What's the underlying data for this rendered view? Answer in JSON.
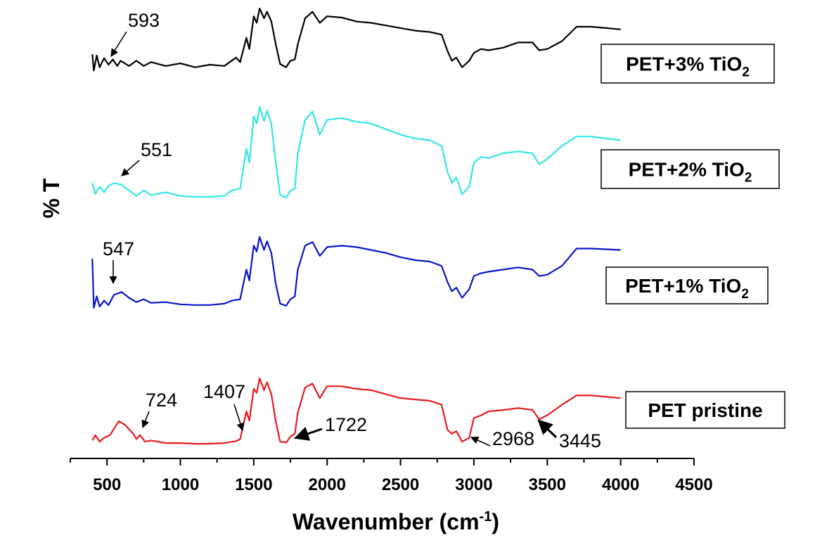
{
  "chart_data": {
    "type": "line",
    "xlabel": "Wavenumber (cm",
    "xlabel_sup": "-1",
    "xlabel_suffix": ")",
    "ylabel": "% T",
    "xlim": [
      250,
      4500
    ],
    "x_ticks": [
      500,
      1000,
      1500,
      2000,
      2500,
      3000,
      3500,
      4000,
      4500
    ],
    "y_axis_ticks_shown": false,
    "grid": false,
    "series": [
      {
        "name": "PET+3% TiO2",
        "label_main": "PET+3% TiO",
        "label_sub": "2",
        "color": "#000000",
        "points": [
          [
            400,
            0.3
          ],
          [
            410,
            0.05
          ],
          [
            430,
            0.28
          ],
          [
            450,
            0.1
          ],
          [
            480,
            0.24
          ],
          [
            510,
            0.14
          ],
          [
            540,
            0.22
          ],
          [
            570,
            0.12
          ],
          [
            593,
            0.2
          ],
          [
            650,
            0.12
          ],
          [
            700,
            0.2
          ],
          [
            750,
            0.12
          ],
          [
            800,
            0.18
          ],
          [
            900,
            0.12
          ],
          [
            1000,
            0.16
          ],
          [
            1100,
            0.1
          ],
          [
            1200,
            0.14
          ],
          [
            1300,
            0.12
          ],
          [
            1380,
            0.25
          ],
          [
            1407,
            0.18
          ],
          [
            1450,
            0.55
          ],
          [
            1470,
            0.38
          ],
          [
            1500,
            0.88
          ],
          [
            1520,
            0.78
          ],
          [
            1540,
            1.0
          ],
          [
            1570,
            0.85
          ],
          [
            1590,
            0.95
          ],
          [
            1620,
            0.8
          ],
          [
            1650,
            0.45
          ],
          [
            1680,
            0.15
          ],
          [
            1720,
            0.1
          ],
          [
            1750,
            0.2
          ],
          [
            1780,
            0.22
          ],
          [
            1800,
            0.45
          ],
          [
            1850,
            0.85
          ],
          [
            1900,
            0.95
          ],
          [
            1950,
            0.78
          ],
          [
            2000,
            0.88
          ],
          [
            2100,
            0.86
          ],
          [
            2200,
            0.8
          ],
          [
            2300,
            0.78
          ],
          [
            2400,
            0.74
          ],
          [
            2500,
            0.7
          ],
          [
            2600,
            0.66
          ],
          [
            2700,
            0.64
          ],
          [
            2780,
            0.6
          ],
          [
            2820,
            0.35
          ],
          [
            2850,
            0.2
          ],
          [
            2880,
            0.25
          ],
          [
            2920,
            0.1
          ],
          [
            2968,
            0.2
          ],
          [
            3000,
            0.32
          ],
          [
            3050,
            0.38
          ],
          [
            3100,
            0.36
          ],
          [
            3200,
            0.4
          ],
          [
            3300,
            0.48
          ],
          [
            3400,
            0.48
          ],
          [
            3445,
            0.36
          ],
          [
            3500,
            0.38
          ],
          [
            3600,
            0.5
          ],
          [
            3700,
            0.72
          ],
          [
            3800,
            0.72
          ],
          [
            3900,
            0.7
          ],
          [
            4000,
            0.68
          ]
        ]
      },
      {
        "name": "PET+2% TiO2",
        "label_main": "PET+2% TiO",
        "label_sub": "2",
        "color": "#33e5e5",
        "points": [
          [
            400,
            0.18
          ],
          [
            420,
            0.06
          ],
          [
            450,
            0.14
          ],
          [
            480,
            0.08
          ],
          [
            510,
            0.15
          ],
          [
            551,
            0.18
          ],
          [
            600,
            0.16
          ],
          [
            650,
            0.1
          ],
          [
            700,
            0.04
          ],
          [
            750,
            0.1
          ],
          [
            800,
            0.05
          ],
          [
            900,
            0.08
          ],
          [
            1000,
            0.04
          ],
          [
            1100,
            0.03
          ],
          [
            1200,
            0.03
          ],
          [
            1300,
            0.04
          ],
          [
            1350,
            0.1
          ],
          [
            1407,
            0.12
          ],
          [
            1450,
            0.55
          ],
          [
            1470,
            0.4
          ],
          [
            1500,
            0.9
          ],
          [
            1520,
            0.82
          ],
          [
            1540,
            1.0
          ],
          [
            1570,
            0.85
          ],
          [
            1590,
            0.96
          ],
          [
            1620,
            0.82
          ],
          [
            1650,
            0.4
          ],
          [
            1680,
            0.05
          ],
          [
            1720,
            0.02
          ],
          [
            1750,
            0.1
          ],
          [
            1780,
            0.12
          ],
          [
            1800,
            0.5
          ],
          [
            1850,
            0.86
          ],
          [
            1900,
            0.95
          ],
          [
            1950,
            0.7
          ],
          [
            2000,
            0.86
          ],
          [
            2100,
            0.88
          ],
          [
            2200,
            0.84
          ],
          [
            2300,
            0.82
          ],
          [
            2400,
            0.76
          ],
          [
            2500,
            0.7
          ],
          [
            2600,
            0.66
          ],
          [
            2700,
            0.64
          ],
          [
            2780,
            0.58
          ],
          [
            2820,
            0.3
          ],
          [
            2850,
            0.18
          ],
          [
            2880,
            0.24
          ],
          [
            2920,
            0.06
          ],
          [
            2968,
            0.14
          ],
          [
            3000,
            0.4
          ],
          [
            3050,
            0.46
          ],
          [
            3100,
            0.45
          ],
          [
            3200,
            0.5
          ],
          [
            3300,
            0.52
          ],
          [
            3400,
            0.5
          ],
          [
            3445,
            0.38
          ],
          [
            3500,
            0.44
          ],
          [
            3600,
            0.58
          ],
          [
            3700,
            0.68
          ],
          [
            3800,
            0.68
          ],
          [
            3900,
            0.66
          ],
          [
            4000,
            0.64
          ]
        ]
      },
      {
        "name": "PET+1% TiO2",
        "label_main": "PET+1% TiO",
        "label_sub": "2",
        "color": "#0a14c8",
        "points": [
          [
            400,
            0.7
          ],
          [
            410,
            0.02
          ],
          [
            430,
            0.18
          ],
          [
            450,
            0.04
          ],
          [
            480,
            0.12
          ],
          [
            510,
            0.06
          ],
          [
            547,
            0.2
          ],
          [
            600,
            0.24
          ],
          [
            650,
            0.16
          ],
          [
            700,
            0.1
          ],
          [
            750,
            0.14
          ],
          [
            800,
            0.09
          ],
          [
            900,
            0.1
          ],
          [
            1000,
            0.07
          ],
          [
            1100,
            0.06
          ],
          [
            1200,
            0.06
          ],
          [
            1300,
            0.08
          ],
          [
            1350,
            0.12
          ],
          [
            1407,
            0.14
          ],
          [
            1450,
            0.55
          ],
          [
            1470,
            0.4
          ],
          [
            1500,
            0.88
          ],
          [
            1520,
            0.8
          ],
          [
            1540,
            1.0
          ],
          [
            1570,
            0.82
          ],
          [
            1590,
            0.94
          ],
          [
            1620,
            0.78
          ],
          [
            1650,
            0.35
          ],
          [
            1680,
            0.08
          ],
          [
            1720,
            0.05
          ],
          [
            1750,
            0.14
          ],
          [
            1780,
            0.18
          ],
          [
            1800,
            0.55
          ],
          [
            1850,
            0.88
          ],
          [
            1900,
            0.93
          ],
          [
            1950,
            0.74
          ],
          [
            2000,
            0.86
          ],
          [
            2100,
            0.88
          ],
          [
            2200,
            0.86
          ],
          [
            2300,
            0.82
          ],
          [
            2400,
            0.78
          ],
          [
            2500,
            0.72
          ],
          [
            2600,
            0.68
          ],
          [
            2700,
            0.66
          ],
          [
            2780,
            0.6
          ],
          [
            2820,
            0.38
          ],
          [
            2850,
            0.25
          ],
          [
            2880,
            0.3
          ],
          [
            2920,
            0.16
          ],
          [
            2968,
            0.28
          ],
          [
            3000,
            0.46
          ],
          [
            3050,
            0.5
          ],
          [
            3100,
            0.52
          ],
          [
            3200,
            0.55
          ],
          [
            3300,
            0.58
          ],
          [
            3400,
            0.55
          ],
          [
            3445,
            0.46
          ],
          [
            3500,
            0.48
          ],
          [
            3600,
            0.6
          ],
          [
            3700,
            0.84
          ],
          [
            3800,
            0.84
          ],
          [
            3900,
            0.83
          ],
          [
            4000,
            0.82
          ]
        ]
      },
      {
        "name": "PET pristine",
        "label_main": "PET pristine",
        "label_sub": "",
        "color": "#e8191e",
        "points": [
          [
            400,
            0.06
          ],
          [
            420,
            0.14
          ],
          [
            450,
            0.04
          ],
          [
            480,
            0.1
          ],
          [
            520,
            0.14
          ],
          [
            580,
            0.35
          ],
          [
            620,
            0.3
          ],
          [
            680,
            0.16
          ],
          [
            700,
            0.08
          ],
          [
            724,
            0.14
          ],
          [
            760,
            0.04
          ],
          [
            800,
            0.06
          ],
          [
            900,
            0.02
          ],
          [
            1000,
            0.02
          ],
          [
            1100,
            0.01
          ],
          [
            1200,
            0.01
          ],
          [
            1300,
            0.02
          ],
          [
            1380,
            0.05
          ],
          [
            1407,
            0.08
          ],
          [
            1450,
            0.5
          ],
          [
            1470,
            0.36
          ],
          [
            1500,
            0.84
          ],
          [
            1520,
            0.78
          ],
          [
            1540,
            1.0
          ],
          [
            1570,
            0.82
          ],
          [
            1590,
            0.94
          ],
          [
            1620,
            0.76
          ],
          [
            1650,
            0.35
          ],
          [
            1680,
            0.04
          ],
          [
            1722,
            0.03
          ],
          [
            1750,
            0.12
          ],
          [
            1780,
            0.16
          ],
          [
            1800,
            0.48
          ],
          [
            1850,
            0.86
          ],
          [
            1900,
            0.92
          ],
          [
            1950,
            0.7
          ],
          [
            2000,
            0.88
          ],
          [
            2100,
            0.88
          ],
          [
            2200,
            0.84
          ],
          [
            2300,
            0.82
          ],
          [
            2400,
            0.76
          ],
          [
            2500,
            0.7
          ],
          [
            2600,
            0.68
          ],
          [
            2700,
            0.66
          ],
          [
            2780,
            0.6
          ],
          [
            2820,
            0.22
          ],
          [
            2850,
            0.16
          ],
          [
            2880,
            0.2
          ],
          [
            2920,
            0.04
          ],
          [
            2968,
            0.1
          ],
          [
            3000,
            0.4
          ],
          [
            3050,
            0.44
          ],
          [
            3100,
            0.5
          ],
          [
            3200,
            0.52
          ],
          [
            3300,
            0.55
          ],
          [
            3400,
            0.52
          ],
          [
            3445,
            0.38
          ],
          [
            3500,
            0.44
          ],
          [
            3600,
            0.6
          ],
          [
            3700,
            0.74
          ],
          [
            3800,
            0.74
          ],
          [
            3900,
            0.72
          ],
          [
            4000,
            0.7
          ]
        ]
      }
    ],
    "annotations": [
      {
        "series": 0,
        "text": "593",
        "x": 593
      },
      {
        "series": 1,
        "text": "551",
        "x": 551
      },
      {
        "series": 2,
        "text": "547",
        "x": 547
      },
      {
        "series": 3,
        "text": "724",
        "x": 724
      },
      {
        "series": 3,
        "text": "1407",
        "x": 1407
      },
      {
        "series": 3,
        "text": "1722",
        "x": 1722
      },
      {
        "series": 3,
        "text": "2968",
        "x": 2968
      },
      {
        "series": 3,
        "text": "3445",
        "x": 3445
      }
    ]
  }
}
